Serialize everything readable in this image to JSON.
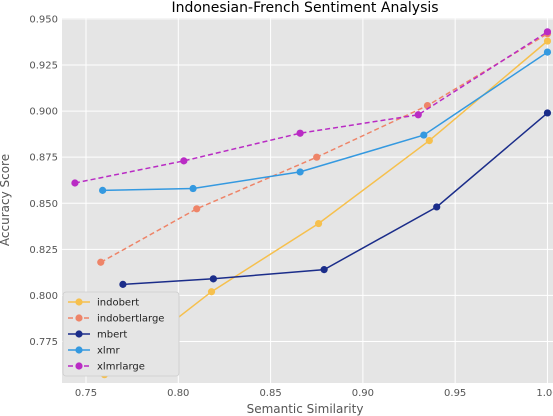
{
  "chart_data": {
    "type": "line",
    "title": "Indonesian-French Sentiment Analysis",
    "xlabel": "Semantic Similarity",
    "ylabel": "Accuracy Score",
    "xlim": [
      0.737,
      1.003
    ],
    "ylim": [
      0.7525,
      0.9505
    ],
    "xticks": [
      {
        "value": 0.75,
        "label": "0.75"
      },
      {
        "value": 0.8,
        "label": "0.80"
      },
      {
        "value": 0.85,
        "label": "0.85"
      },
      {
        "value": 0.9,
        "label": "0.90"
      },
      {
        "value": 0.95,
        "label": "0.95"
      },
      {
        "value": 1.0,
        "label": "1.00"
      }
    ],
    "yticks": [
      {
        "value": 0.775,
        "label": "0.775"
      },
      {
        "value": 0.8,
        "label": "0.800"
      },
      {
        "value": 0.825,
        "label": "0.825"
      },
      {
        "value": 0.85,
        "label": "0.850"
      },
      {
        "value": 0.875,
        "label": "0.875"
      },
      {
        "value": 0.9,
        "label": "0.900"
      },
      {
        "value": 0.925,
        "label": "0.925"
      },
      {
        "value": 0.95,
        "label": "0.950"
      }
    ],
    "grid": true,
    "background": "#e5e5e5",
    "legend_position": "bottom-left",
    "series": [
      {
        "name": "indobert",
        "color": "#f6c04d",
        "dashed": false,
        "x": [
          0.76,
          0.818,
          0.876,
          0.936,
          1.0
        ],
        "y": [
          0.757,
          0.802,
          0.839,
          0.884,
          0.938
        ]
      },
      {
        "name": "indobertlarge",
        "color": "#ee8468",
        "dashed": true,
        "x": [
          0.758,
          0.81,
          0.875,
          0.935,
          1.0
        ],
        "y": [
          0.818,
          0.847,
          0.875,
          0.903,
          0.942
        ]
      },
      {
        "name": "mbert",
        "color": "#1b2d8a",
        "dashed": false,
        "x": [
          0.77,
          0.819,
          0.879,
          0.94,
          1.0
        ],
        "y": [
          0.806,
          0.809,
          0.814,
          0.848,
          0.899
        ]
      },
      {
        "name": "xlmr",
        "color": "#3499e0",
        "dashed": false,
        "x": [
          0.759,
          0.808,
          0.866,
          0.933,
          1.0
        ],
        "y": [
          0.857,
          0.858,
          0.867,
          0.887,
          0.932
        ]
      },
      {
        "name": "xlmrlarge",
        "color": "#b92bc4",
        "dashed": true,
        "x": [
          0.744,
          0.803,
          0.866,
          0.93,
          1.0
        ],
        "y": [
          0.861,
          0.873,
          0.888,
          0.898,
          0.943
        ]
      }
    ]
  }
}
